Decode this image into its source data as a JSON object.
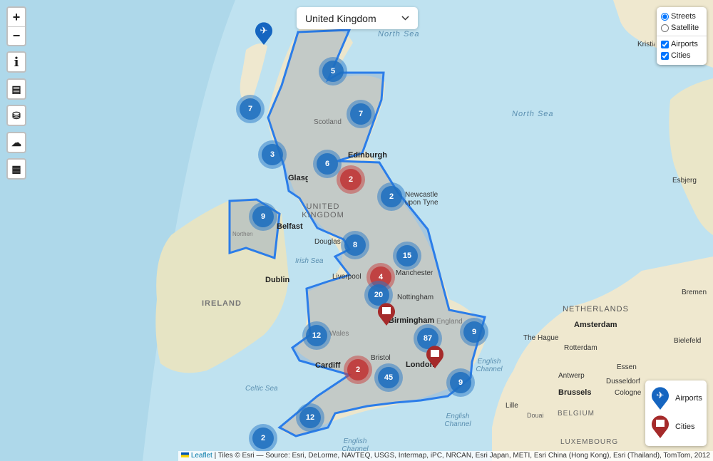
{
  "country_select": {
    "value": "United Kingdom"
  },
  "zoom": {
    "in": "+",
    "out": "−"
  },
  "side_buttons": [
    {
      "icon": "info-icon",
      "glyph": "i"
    },
    {
      "icon": "fax-icon",
      "glyph": "▤"
    },
    {
      "icon": "coins-icon",
      "glyph": "⛁"
    },
    {
      "icon": "weather-icon",
      "glyph": "☁"
    },
    {
      "icon": "calendar-icon",
      "glyph": "▦"
    }
  ],
  "layers": {
    "base": [
      {
        "label": "Streets",
        "checked": true
      },
      {
        "label": "Satellite",
        "checked": false
      }
    ],
    "overlays": [
      {
        "label": "Airports",
        "checked": true
      },
      {
        "label": "Cities",
        "checked": true
      }
    ]
  },
  "legend": {
    "airports": "Airports",
    "cities": "Cities"
  },
  "colors": {
    "airport": "#1565c0",
    "city": "#a52a2a",
    "cluster": "#2a78c6",
    "cluster_city": "#c0392b",
    "border": "#2b7de9"
  },
  "clusters": [
    {
      "count": "5",
      "type": "airport"
    },
    {
      "count": "7",
      "type": "airport"
    },
    {
      "count": "7",
      "type": "airport"
    },
    {
      "count": "3",
      "type": "airport"
    },
    {
      "count": "2",
      "type": "city"
    },
    {
      "count": "6",
      "type": "airport"
    },
    {
      "count": "2",
      "type": "airport"
    },
    {
      "count": "9",
      "type": "airport"
    },
    {
      "count": "8",
      "type": "airport"
    },
    {
      "count": "15",
      "type": "airport"
    },
    {
      "count": "4",
      "type": "city"
    },
    {
      "count": "20",
      "type": "airport"
    },
    {
      "count": "12",
      "type": "airport"
    },
    {
      "count": "87",
      "type": "airport"
    },
    {
      "count": "9",
      "type": "airport"
    },
    {
      "count": "2",
      "type": "city"
    },
    {
      "count": "45",
      "type": "airport"
    },
    {
      "count": "9",
      "type": "airport"
    },
    {
      "count": "12",
      "type": "airport"
    },
    {
      "count": "2",
      "type": "airport"
    }
  ],
  "labels": {
    "north_sea_1": "North Sea",
    "north_sea_2": "North Sea",
    "scotland": "Scotland",
    "edinburgh": "Edinburgh",
    "glasgow": "Glasgow",
    "newcastle": "Newcastle upon Tyne",
    "uk": "UNITED KINGDOM",
    "belfast": "Belfast",
    "northern_ireland": "Northern Ireland",
    "douglas": "Douglas",
    "irish_sea": "Irish Sea",
    "dublin": "Dublin",
    "ireland": "IRELAND",
    "liverpool": "Liverpool",
    "manchester": "Manchester",
    "nottingham": "Nottingham",
    "birmingham": "Birmingham",
    "wales": "Wales",
    "england": "England",
    "cardiff": "Cardiff",
    "bristol": "Bristol",
    "london": "London",
    "celtic_sea": "Celtic Sea",
    "english_channel_1": "English Channel",
    "english_channel_2": "English Channel",
    "english_channel_3": "English Channel",
    "netherlands": "NETHERLANDS",
    "amsterdam": "Amsterdam",
    "the_hague": "The Hague",
    "rotterdam": "Rotterdam",
    "antwerp": "Antwerp",
    "brussels": "Brussels",
    "belgium": "BELGIUM",
    "lille": "Lille",
    "douai": "Douai",
    "luxembourg": "LUXEMBOURG",
    "bremen": "Bremen",
    "bielefeld": "Bielefeld",
    "essen": "Essen",
    "dusseldorf": "Dusseldorf",
    "cologne": "Cologne",
    "esbjerg": "Esbjerg",
    "kristiansand": "Kristiansand"
  },
  "attribution": {
    "leaflet": "Leaflet",
    "text": "| Tiles © Esri — Source: Esri, DeLorme, NAVTEQ, USGS, Intermap, iPC, NRCAN, Esri Japan, METI, Esri China (Hong Kong), Esri (Thailand), TomTom, 2012"
  }
}
